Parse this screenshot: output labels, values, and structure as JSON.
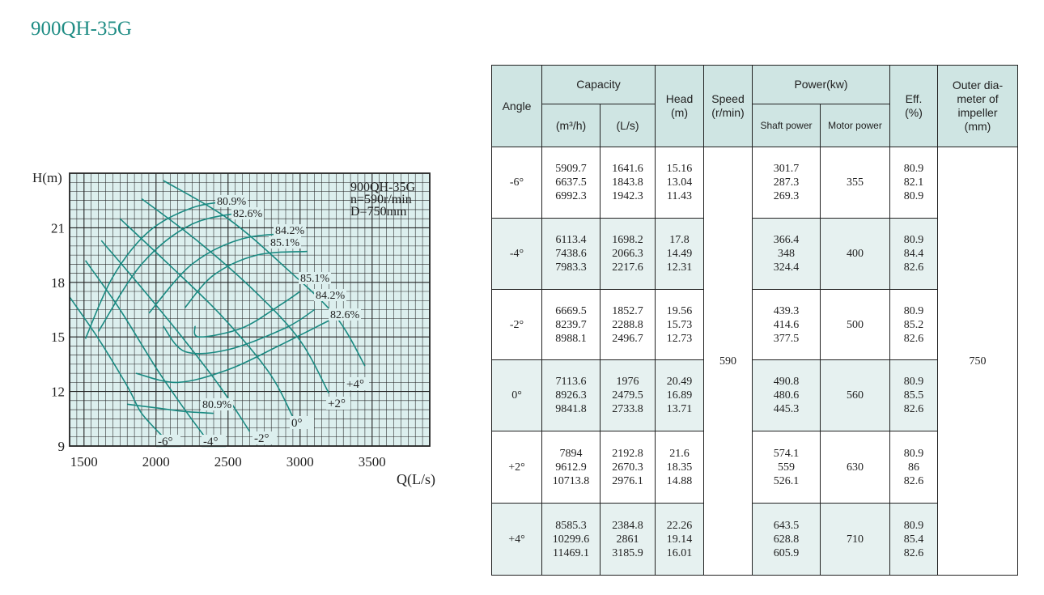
{
  "title": "900QH-35G",
  "chart_data": {
    "type": "line",
    "title": "",
    "xlabel": "Q(L/s)",
    "ylabel": "H(m)",
    "xlim": [
      1400,
      3900
    ],
    "ylim": [
      9,
      24
    ],
    "grid": true,
    "x_ticks": [
      1500,
      2000,
      2500,
      3000,
      3500
    ],
    "y_ticks": [
      9,
      12,
      15,
      18,
      21
    ],
    "legend_lines": [
      "900QH-35G",
      "n=590r/min",
      "D=750mm"
    ],
    "series": [
      {
        "name": "-6°",
        "points": [
          [
            1400,
            17.2
          ],
          [
            1600,
            14.9
          ],
          [
            1800,
            12.3
          ],
          [
            1900,
            10.8
          ],
          [
            2050,
            9.5
          ]
        ]
      },
      {
        "name": "-4°",
        "points": [
          [
            1510,
            19.2
          ],
          [
            1750,
            16.5
          ],
          [
            2000,
            13.3
          ],
          [
            2200,
            11.0
          ],
          [
            2330,
            9.6
          ]
        ]
      },
      {
        "name": "-2°",
        "points": [
          [
            1620,
            20.3
          ],
          [
            1900,
            17.7
          ],
          [
            2200,
            14.8
          ],
          [
            2450,
            12.2
          ],
          [
            2650,
            9.8
          ]
        ]
      },
      {
        "name": "0°",
        "points": [
          [
            1750,
            21.5
          ],
          [
            2100,
            18.9
          ],
          [
            2450,
            16.2
          ],
          [
            2780,
            13.1
          ],
          [
            2950,
            10.6
          ]
        ]
      },
      {
        "name": "+2°",
        "points": [
          [
            1900,
            22.6
          ],
          [
            2300,
            20.2
          ],
          [
            2700,
            17.4
          ],
          [
            3000,
            14.8
          ],
          [
            3200,
            11.9
          ]
        ]
      },
      {
        "name": "+4°",
        "points": [
          [
            2050,
            23.6
          ],
          [
            2500,
            21.5
          ],
          [
            2900,
            18.8
          ],
          [
            3250,
            16.1
          ],
          [
            3450,
            13.4
          ]
        ]
      },
      {
        "name": "80.9%",
        "points": [
          [
            1510,
            14.9
          ],
          [
            1700,
            18.3
          ],
          [
            1950,
            20.8
          ],
          [
            2250,
            22.1
          ],
          [
            2550,
            22.5
          ]
        ]
      },
      {
        "name": "80.9%",
        "points": [
          [
            1800,
            11.3
          ],
          [
            2000,
            11.1
          ],
          [
            2200,
            10.9
          ],
          [
            2400,
            10.8
          ]
        ]
      },
      {
        "name": "82.6%",
        "points": [
          [
            1600,
            15.3
          ],
          [
            1900,
            19.0
          ],
          [
            2250,
            21.2
          ],
          [
            2650,
            21.9
          ]
        ]
      },
      {
        "name": "82.6%",
        "points": [
          [
            1860,
            13.0
          ],
          [
            2150,
            12.5
          ],
          [
            2500,
            13.2
          ],
          [
            2850,
            14.5
          ],
          [
            3200,
            15.9
          ]
        ]
      },
      {
        "name": "84.2%",
        "points": [
          [
            1950,
            16.3
          ],
          [
            2250,
            19.0
          ],
          [
            2600,
            20.4
          ],
          [
            3000,
            20.7
          ]
        ]
      },
      {
        "name": "84.2%",
        "points": [
          [
            2050,
            15.6
          ],
          [
            2200,
            14.2
          ],
          [
            2500,
            14.3
          ],
          [
            2900,
            15.5
          ],
          [
            3100,
            16.5
          ]
        ]
      },
      {
        "name": "85.1%",
        "points": [
          [
            2200,
            16.6
          ],
          [
            2400,
            18.4
          ],
          [
            2700,
            19.5
          ],
          [
            3050,
            19.7
          ]
        ]
      },
      {
        "name": "85.1%",
        "points": [
          [
            2270,
            15.6
          ],
          [
            2300,
            15.0
          ],
          [
            2600,
            15.5
          ],
          [
            2870,
            16.8
          ],
          [
            3000,
            17.5
          ]
        ]
      }
    ],
    "curve_labels": {
      "efficiency": [
        "80.9%",
        "82.6%",
        "84.2%",
        "85.1%",
        "85.1%",
        "84.2%",
        "82.6%",
        "80.9%"
      ],
      "angles": [
        "-6°",
        "-4°",
        "-2°",
        "0°",
        "+2°",
        "+4°"
      ]
    }
  },
  "table": {
    "headers": {
      "angle": "Angle",
      "capacity": "Capacity",
      "cap_m3h": "(m³/h)",
      "cap_ls": "(L/s)",
      "head": [
        "Head",
        "(m)"
      ],
      "speed": [
        "Speed",
        "(r/min)"
      ],
      "power": "Power(kw)",
      "shaft": "Shaft power",
      "motor": "Motor power",
      "eff": [
        "Eff.",
        "(%)"
      ],
      "outer": [
        "Outer dia-",
        "meter of",
        "impeller",
        "(mm)"
      ]
    },
    "speed": "590",
    "outer_diameter": "750",
    "rows": [
      {
        "angle": "-6°",
        "m3h": [
          "5909.7",
          "6637.5",
          "6992.3"
        ],
        "ls": [
          "1641.6",
          "1843.8",
          "1942.3"
        ],
        "head": [
          "15.16",
          "13.04",
          "11.43"
        ],
        "shaft": [
          "301.7",
          "287.3",
          "269.3"
        ],
        "motor": "355",
        "eff": [
          "80.9",
          "82.1",
          "80.9"
        ]
      },
      {
        "angle": "-4°",
        "m3h": [
          "6113.4",
          "7438.6",
          "7983.3"
        ],
        "ls": [
          "1698.2",
          "2066.3",
          "2217.6"
        ],
        "head": [
          "17.8",
          "14.49",
          "12.31"
        ],
        "shaft": [
          "366.4",
          "348",
          "324.4"
        ],
        "motor": "400",
        "eff": [
          "80.9",
          "84.4",
          "82.6"
        ]
      },
      {
        "angle": "-2°",
        "m3h": [
          "6669.5",
          "8239.7",
          "8988.1"
        ],
        "ls": [
          "1852.7",
          "2288.8",
          "2496.7"
        ],
        "head": [
          "19.56",
          "15.73",
          "12.73"
        ],
        "shaft": [
          "439.3",
          "414.6",
          "377.5"
        ],
        "motor": "500",
        "eff": [
          "80.9",
          "85.2",
          "82.6"
        ]
      },
      {
        "angle": "0°",
        "m3h": [
          "7113.6",
          "8926.3",
          "9841.8"
        ],
        "ls": [
          "1976",
          "2479.5",
          "2733.8"
        ],
        "head": [
          "20.49",
          "16.89",
          "13.71"
        ],
        "shaft": [
          "490.8",
          "480.6",
          "445.3"
        ],
        "motor": "560",
        "eff": [
          "80.9",
          "85.5",
          "82.6"
        ]
      },
      {
        "angle": "+2°",
        "m3h": [
          "7894",
          "9612.9",
          "10713.8"
        ],
        "ls": [
          "2192.8",
          "2670.3",
          "2976.1"
        ],
        "head": [
          "21.6",
          "18.35",
          "14.88"
        ],
        "shaft": [
          "574.1",
          "559",
          "526.1"
        ],
        "motor": "630",
        "eff": [
          "80.9",
          "86",
          "82.6"
        ]
      },
      {
        "angle": "+4°",
        "m3h": [
          "8585.3",
          "10299.6",
          "11469.1"
        ],
        "ls": [
          "2384.8",
          "2861",
          "3185.9"
        ],
        "head": [
          "22.26",
          "19.14",
          "16.01"
        ],
        "shaft": [
          "643.5",
          "628.8",
          "605.9"
        ],
        "motor": "710",
        "eff": [
          "80.9",
          "85.4",
          "82.6"
        ]
      }
    ]
  },
  "colors": {
    "accent": "#1e8c84",
    "curve": "#1a8a82",
    "chart_bg": "#dcefee",
    "header_bg": "#cfe5e3",
    "row_shade": "#e6f1f0"
  }
}
